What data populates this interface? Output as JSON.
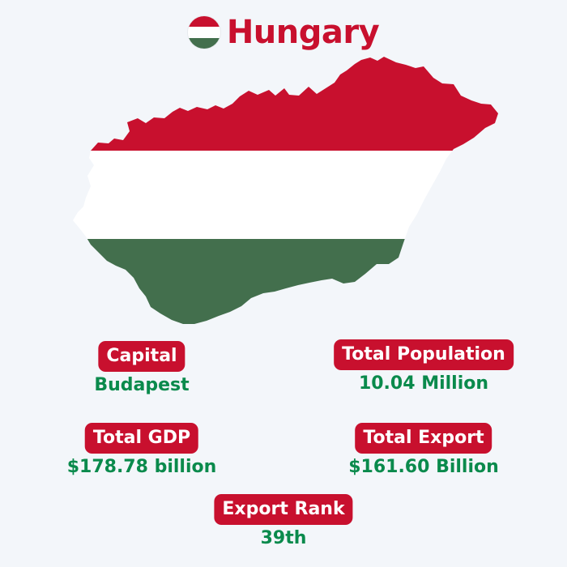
{
  "title": "Hungary",
  "colors": {
    "flag_red": "#c8102e",
    "flag_white": "#ffffff",
    "flag_green": "#436f4d",
    "badge_bg": "#c8102e",
    "value_text": "#0a8a4c",
    "background": "#f3f6fa"
  },
  "icons": {
    "flag": "hungary-flag-icon",
    "map": "hungary-map-flag"
  },
  "stats": {
    "capital": {
      "label": "Capital",
      "value": "Budapest"
    },
    "population": {
      "label": "Total Population",
      "value": "10.04 Million"
    },
    "gdp": {
      "label": "Total GDP",
      "value": "$178.78 billion"
    },
    "export": {
      "label": "Total Export",
      "value": "$161.60 Billion"
    },
    "export_rank": {
      "label": "Export Rank",
      "value": "39th"
    }
  }
}
